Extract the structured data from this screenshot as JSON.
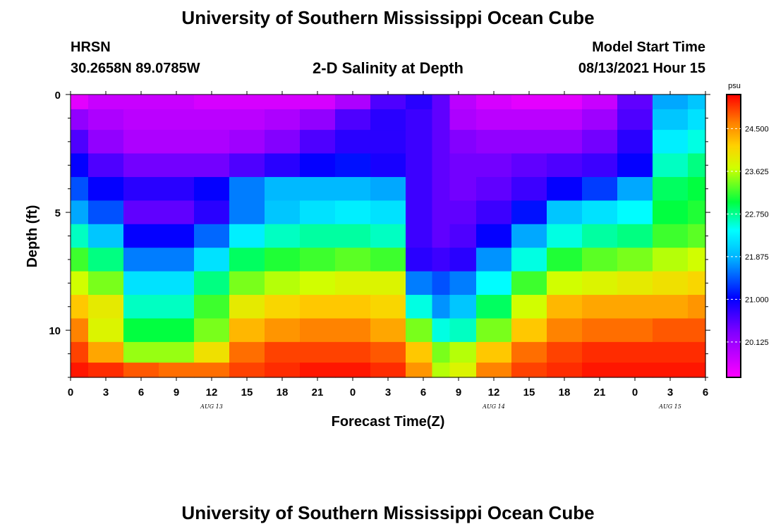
{
  "header": {
    "title_top": "University of Southern Mississippi Ocean Cube",
    "station": "HRSN",
    "coords": "30.2658N  89.0785W",
    "subtitle": "2-D Salinity at Depth",
    "model_label": "Model Start Time",
    "model_time": "08/13/2021 Hour 15"
  },
  "footer": {
    "title_bottom": "University of Southern Mississippi Ocean Cube"
  },
  "chart_data": {
    "type": "heatmap",
    "title": "2-D Salinity at Depth",
    "xlabel": "Forecast Time(Z)",
    "ylabel": "Depth (ft)",
    "x_tick_labels": [
      "0",
      "3",
      "6",
      "9",
      "12",
      "15",
      "18",
      "21",
      "0",
      "3",
      "6",
      "9",
      "12",
      "15",
      "18",
      "21",
      "0",
      "3",
      "6"
    ],
    "x_range_hours": [
      0,
      54
    ],
    "date_labels": [
      {
        "label": "AUG 13",
        "hour": 12
      },
      {
        "label": "AUG 14",
        "hour": 36
      },
      {
        "label": "AUG 15",
        "hour": 51
      }
    ],
    "y_tick_labels": [
      "0",
      "5",
      "10"
    ],
    "y_tick_values": [
      0,
      5,
      10
    ],
    "y_range": [
      0,
      12
    ],
    "colorbar": {
      "unit": "psu",
      "tick_labels": [
        "24.500",
        "23.625",
        "22.750",
        "21.875",
        "21.000",
        "20.125"
      ],
      "tick_values": [
        24.5,
        23.625,
        22.75,
        21.875,
        21.0,
        20.125
      ],
      "range": [
        19.4,
        25.2
      ]
    },
    "depth_levels_ft": [
      0.25,
      1,
      2,
      3,
      4,
      5,
      6,
      7,
      8,
      9,
      10,
      11,
      11.75
    ],
    "time_hours": [
      0,
      3,
      6,
      9,
      12,
      15,
      18,
      21,
      24,
      27,
      30,
      31.5,
      33,
      36,
      39,
      42,
      45,
      48,
      51,
      54
    ],
    "values": [
      [
        19.6,
        19.8,
        19.8,
        19.8,
        19.7,
        19.7,
        19.7,
        19.7,
        20.0,
        20.6,
        20.8,
        20.5,
        19.9,
        19.7,
        19.6,
        19.6,
        19.8,
        20.5,
        21.8,
        22.0
      ],
      [
        20.2,
        20.0,
        19.9,
        19.9,
        19.9,
        19.9,
        20.0,
        20.2,
        20.6,
        20.8,
        20.7,
        20.5,
        20.0,
        19.9,
        19.9,
        19.9,
        20.1,
        20.6,
        22.0,
        22.2
      ],
      [
        20.6,
        20.2,
        20.0,
        20.0,
        20.0,
        20.1,
        20.3,
        20.6,
        20.8,
        20.8,
        20.7,
        20.5,
        20.3,
        20.2,
        20.2,
        20.2,
        20.4,
        20.8,
        22.3,
        22.5
      ],
      [
        21.0,
        20.6,
        20.4,
        20.4,
        20.4,
        20.6,
        20.8,
        21.0,
        21.1,
        20.9,
        20.7,
        20.5,
        20.4,
        20.4,
        20.5,
        20.6,
        20.7,
        21.0,
        22.6,
        22.8
      ],
      [
        21.4,
        21.0,
        20.8,
        20.8,
        21.0,
        21.6,
        21.9,
        21.9,
        21.9,
        21.8,
        20.7,
        20.5,
        20.4,
        20.5,
        20.7,
        21.0,
        21.3,
        21.8,
        22.9,
        23.0
      ],
      [
        21.8,
        21.4,
        20.5,
        20.5,
        20.8,
        21.6,
        22.0,
        22.2,
        22.3,
        22.2,
        20.7,
        20.5,
        20.5,
        20.7,
        21.1,
        22.0,
        22.2,
        22.4,
        23.0,
        23.1
      ],
      [
        22.6,
        22.0,
        21.0,
        21.0,
        21.5,
        22.3,
        22.6,
        22.7,
        22.7,
        22.6,
        20.7,
        20.5,
        20.6,
        21.0,
        21.8,
        22.5,
        22.7,
        22.8,
        23.2,
        23.3
      ],
      [
        23.2,
        22.8,
        21.6,
        21.6,
        22.2,
        22.9,
        23.1,
        23.2,
        23.3,
        23.2,
        20.8,
        20.7,
        20.8,
        21.7,
        22.5,
        23.1,
        23.3,
        23.4,
        23.6,
        23.7
      ],
      [
        23.7,
        23.4,
        22.2,
        22.2,
        22.8,
        23.4,
        23.6,
        23.7,
        23.8,
        23.8,
        21.6,
        21.4,
        21.6,
        22.4,
        23.2,
        23.7,
        23.8,
        23.9,
        24.0,
        24.1
      ],
      [
        24.2,
        23.9,
        22.6,
        22.6,
        23.2,
        23.9,
        24.1,
        24.2,
        24.2,
        24.1,
        22.5,
        21.7,
        22.0,
        22.9,
        23.7,
        24.3,
        24.4,
        24.4,
        24.4,
        24.5
      ],
      [
        24.6,
        23.8,
        23.0,
        23.0,
        23.4,
        24.3,
        24.5,
        24.6,
        24.6,
        24.4,
        23.4,
        22.5,
        22.6,
        23.4,
        24.2,
        24.6,
        24.7,
        24.7,
        24.8,
        24.8
      ],
      [
        24.9,
        24.4,
        23.5,
        23.5,
        24.0,
        24.7,
        24.9,
        24.9,
        24.9,
        24.8,
        24.2,
        23.4,
        23.6,
        24.2,
        24.7,
        24.9,
        25.0,
        25.0,
        25.0,
        25.0
      ],
      [
        25.1,
        25.0,
        24.8,
        24.7,
        24.7,
        24.9,
        25.0,
        25.1,
        25.1,
        25.0,
        24.5,
        23.6,
        23.8,
        24.6,
        24.9,
        25.0,
        25.1,
        25.1,
        25.1,
        25.1
      ]
    ]
  }
}
